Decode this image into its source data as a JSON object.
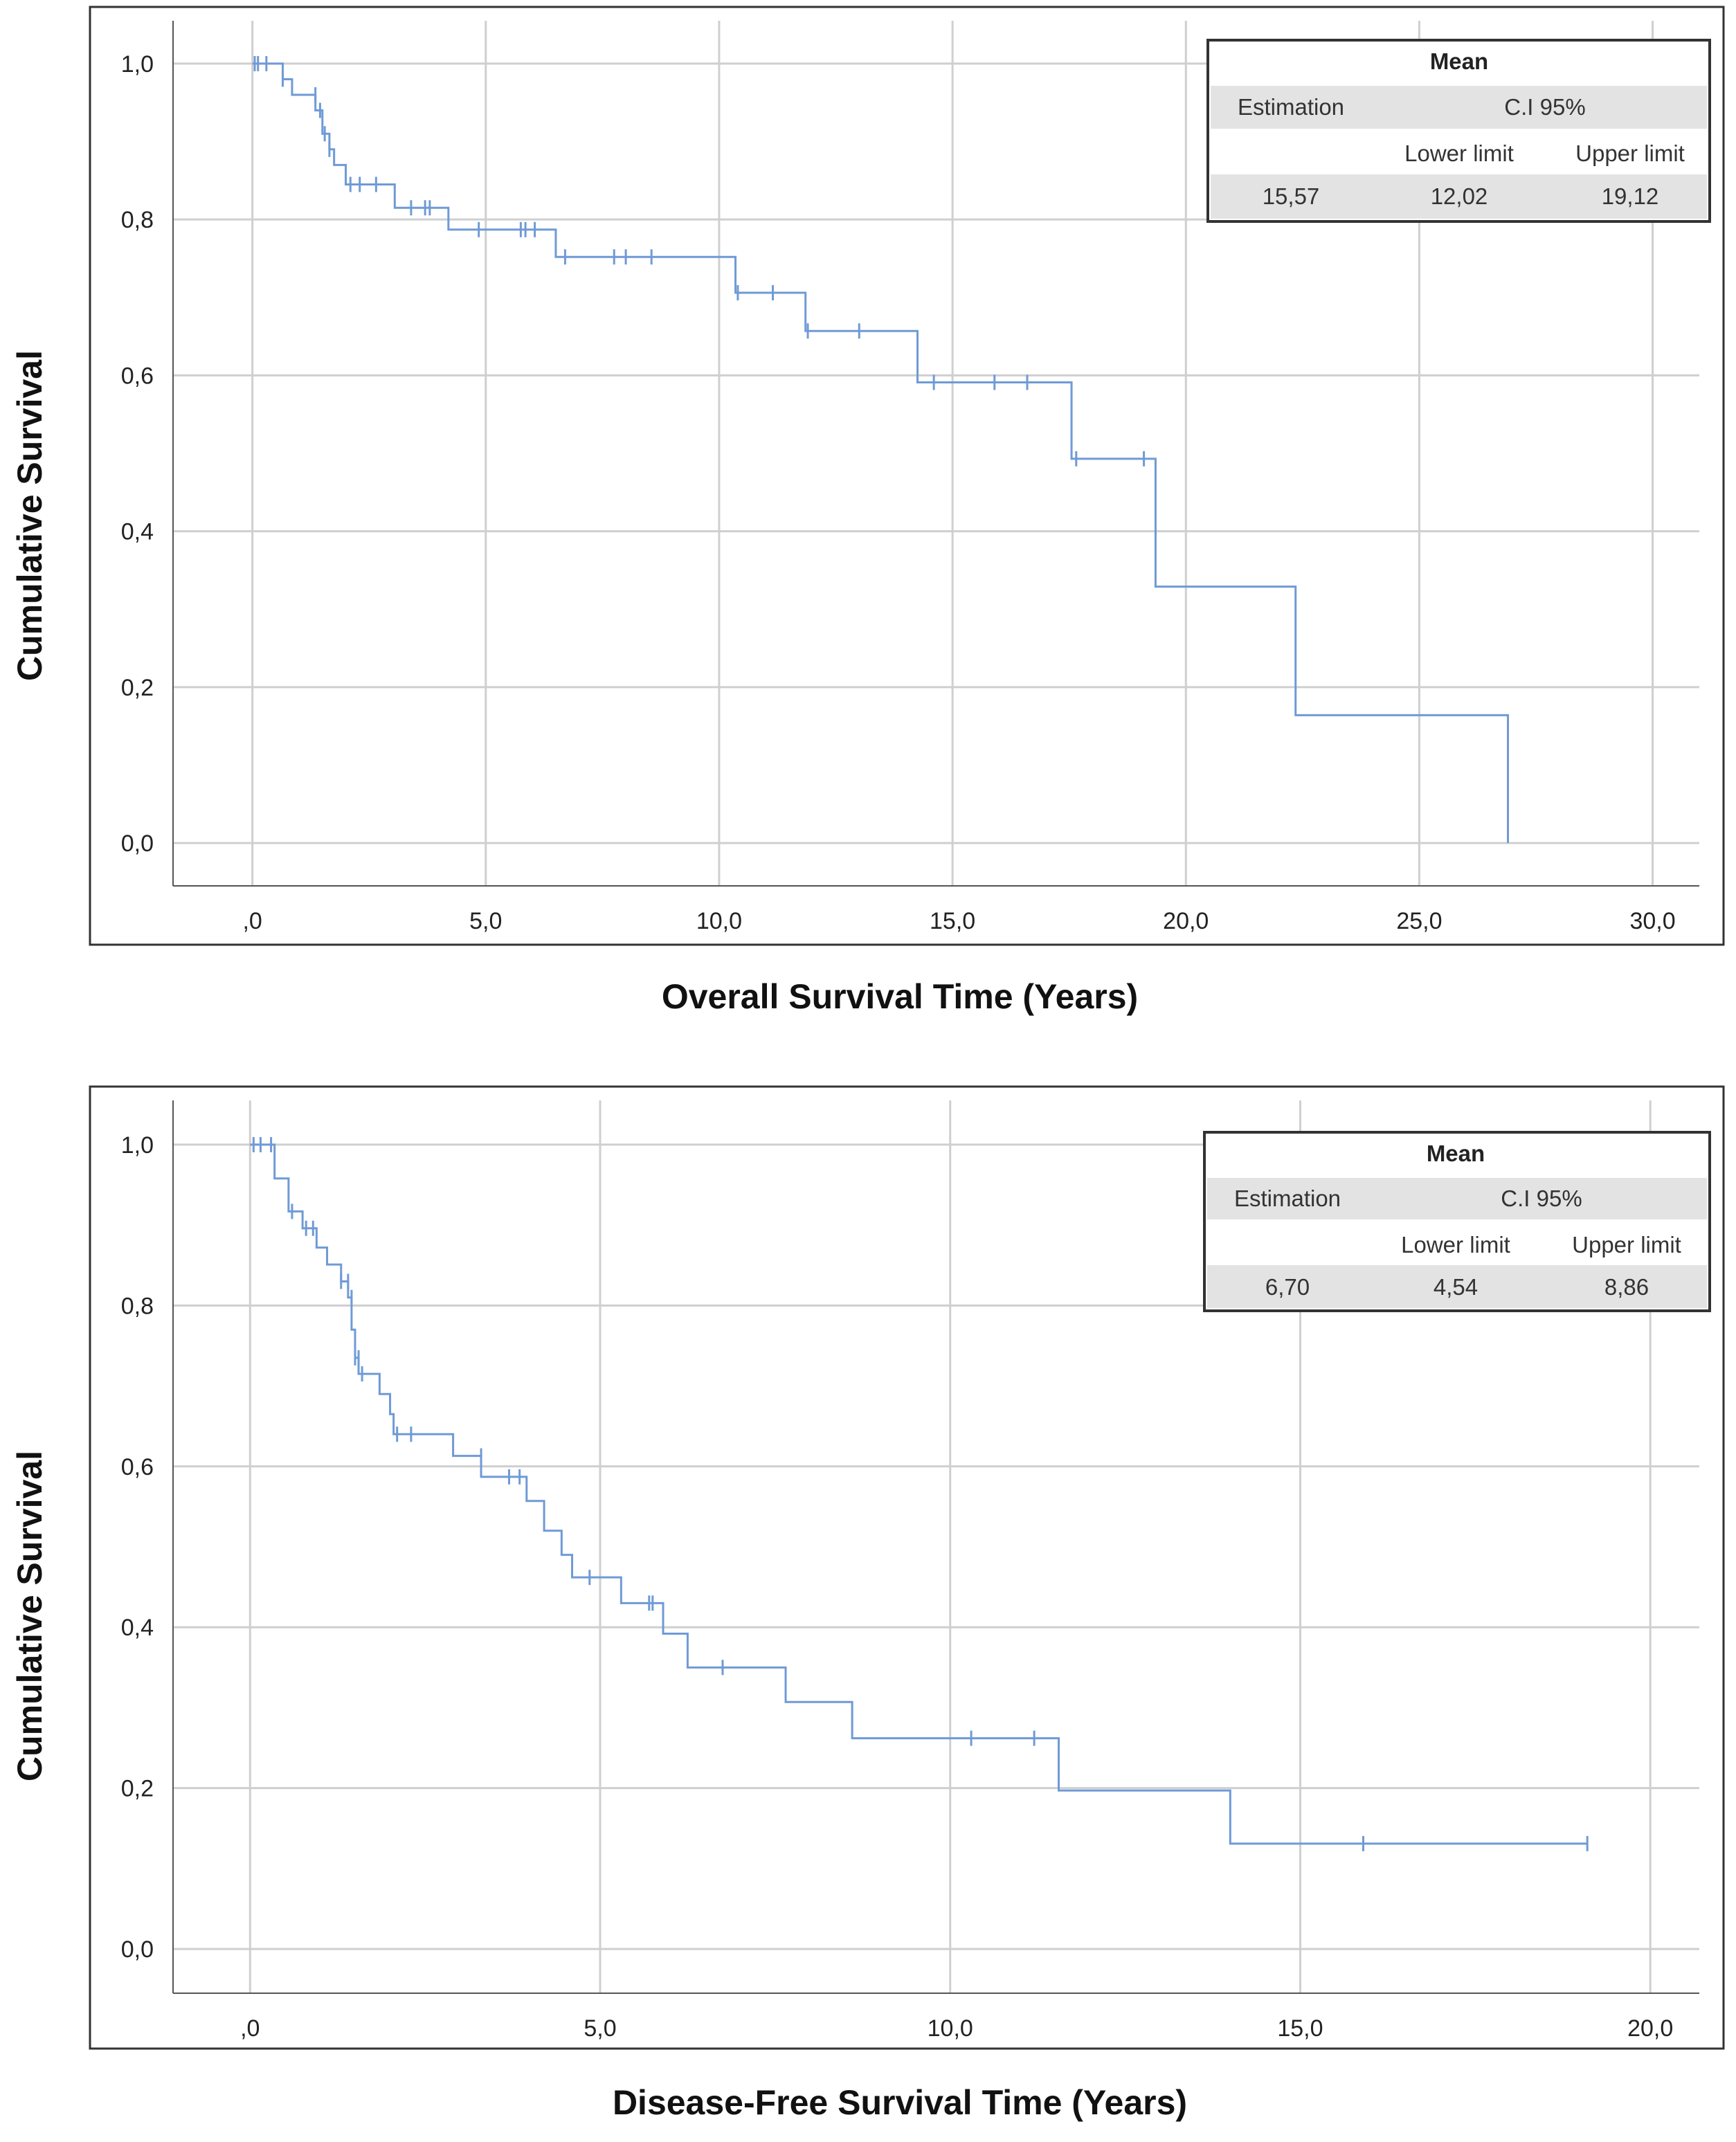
{
  "chart_data": [
    {
      "type": "line",
      "step": true,
      "xlabel": "Overall Survival Time (Years)",
      "ylabel": "Cumulative Survival",
      "xlim": [
        -1.7,
        31.0
      ],
      "ylim": [
        -0.055,
        1.055
      ],
      "x_ticks": [
        0,
        5,
        10,
        15,
        20,
        25,
        30
      ],
      "x_tick_labels": [
        ",0",
        "5,0",
        "10,0",
        "15,0",
        "20,0",
        "25,0",
        "30,0"
      ],
      "y_ticks": [
        0,
        0.2,
        0.4,
        0.6,
        0.8,
        1.0
      ],
      "y_tick_labels": [
        "0,0",
        "0,2",
        "0,4",
        "0,6",
        "0,8",
        "1,0"
      ],
      "grid": true,
      "color": "#6f9ad6",
      "steps": [
        [
          0,
          1.0
        ],
        [
          0.65,
          0.98
        ],
        [
          0.85,
          0.96
        ],
        [
          1.35,
          0.94
        ],
        [
          1.5,
          0.91
        ],
        [
          1.65,
          0.89
        ],
        [
          1.75,
          0.87
        ],
        [
          2.0,
          0.845
        ],
        [
          3.05,
          0.815
        ],
        [
          4.2,
          0.787
        ],
        [
          6.5,
          0.752
        ],
        [
          10.35,
          0.706
        ],
        [
          11.85,
          0.657
        ],
        [
          14.25,
          0.591
        ],
        [
          17.55,
          0.493
        ],
        [
          19.35,
          0.329
        ],
        [
          22.35,
          0.164
        ],
        [
          26.9,
          0.0
        ]
      ],
      "censored": [
        [
          0.05,
          1.0
        ],
        [
          0.12,
          1.0
        ],
        [
          0.3,
          1.0
        ],
        [
          0.65,
          0.98
        ],
        [
          1.35,
          0.96
        ],
        [
          1.45,
          0.94
        ],
        [
          1.55,
          0.91
        ],
        [
          1.65,
          0.89
        ],
        [
          2.1,
          0.845
        ],
        [
          2.3,
          0.845
        ],
        [
          2.65,
          0.845
        ],
        [
          3.4,
          0.815
        ],
        [
          3.7,
          0.815
        ],
        [
          3.8,
          0.815
        ],
        [
          4.85,
          0.787
        ],
        [
          5.75,
          0.787
        ],
        [
          5.85,
          0.787
        ],
        [
          6.05,
          0.787
        ],
        [
          6.7,
          0.752
        ],
        [
          7.75,
          0.752
        ],
        [
          8.0,
          0.752
        ],
        [
          8.55,
          0.752
        ],
        [
          10.4,
          0.706
        ],
        [
          11.15,
          0.706
        ],
        [
          11.9,
          0.657
        ],
        [
          13.0,
          0.657
        ],
        [
          14.6,
          0.591
        ],
        [
          15.9,
          0.591
        ],
        [
          16.6,
          0.591
        ],
        [
          17.65,
          0.493
        ],
        [
          19.1,
          0.493
        ]
      ],
      "table": {
        "title": "Mean",
        "col1": "Estimation",
        "ci_header": "C.I 95%",
        "lower_header": "Lower limit",
        "upper_header": "Upper limit",
        "estimate": "15,57",
        "lower": "12,02",
        "upper": "19,12"
      }
    },
    {
      "type": "line",
      "step": true,
      "xlabel": "Disease-Free Survival Time (Years)",
      "ylabel": "Cumulative Survival",
      "xlim": [
        -1.1,
        20.7
      ],
      "ylim": [
        -0.055,
        1.055
      ],
      "x_ticks": [
        0,
        5,
        10,
        15,
        20
      ],
      "x_tick_labels": [
        ",0",
        "5,0",
        "10,0",
        "15,0",
        "20,0"
      ],
      "y_ticks": [
        0,
        0.2,
        0.4,
        0.6,
        0.8,
        1.0
      ],
      "y_tick_labels": [
        "0,0",
        "0,2",
        "0,4",
        "0,6",
        "0,8",
        "1,0"
      ],
      "grid": true,
      "color": "#6f9ad6",
      "steps": [
        [
          0,
          1.0
        ],
        [
          0.35,
          0.958
        ],
        [
          0.55,
          0.917
        ],
        [
          0.75,
          0.896
        ],
        [
          0.95,
          0.872
        ],
        [
          1.1,
          0.851
        ],
        [
          1.3,
          0.83
        ],
        [
          1.4,
          0.81
        ],
        [
          1.45,
          0.77
        ],
        [
          1.5,
          0.735
        ],
        [
          1.55,
          0.715
        ],
        [
          1.85,
          0.69
        ],
        [
          2.0,
          0.665
        ],
        [
          2.05,
          0.64
        ],
        [
          2.9,
          0.613
        ],
        [
          3.3,
          0.587
        ],
        [
          3.95,
          0.557
        ],
        [
          4.2,
          0.52
        ],
        [
          4.45,
          0.49
        ],
        [
          4.6,
          0.462
        ],
        [
          5.3,
          0.43
        ],
        [
          5.9,
          0.392
        ],
        [
          6.25,
          0.35
        ],
        [
          7.65,
          0.307
        ],
        [
          8.6,
          0.262
        ],
        [
          11.55,
          0.197
        ],
        [
          14.0,
          0.131
        ]
      ],
      "censored": [
        [
          0.05,
          1.0
        ],
        [
          0.15,
          1.0
        ],
        [
          0.3,
          1.0
        ],
        [
          0.6,
          0.917
        ],
        [
          0.8,
          0.896
        ],
        [
          0.9,
          0.896
        ],
        [
          1.3,
          0.83
        ],
        [
          1.4,
          0.83
        ],
        [
          1.45,
          0.81
        ],
        [
          1.5,
          0.735
        ],
        [
          1.55,
          0.735
        ],
        [
          1.6,
          0.715
        ],
        [
          2.1,
          0.64
        ],
        [
          2.3,
          0.64
        ],
        [
          3.3,
          0.613
        ],
        [
          3.7,
          0.587
        ],
        [
          3.85,
          0.587
        ],
        [
          4.85,
          0.462
        ],
        [
          5.7,
          0.43
        ],
        [
          5.75,
          0.43
        ],
        [
          6.75,
          0.35
        ],
        [
          10.3,
          0.262
        ],
        [
          11.2,
          0.262
        ],
        [
          15.9,
          0.131
        ],
        [
          19.1,
          0.131
        ]
      ],
      "table": {
        "title": "Mean",
        "col1": "Estimation",
        "ci_header": "C.I 95%",
        "lower_header": "Lower limit",
        "upper_header": "Upper limit",
        "estimate": "6,70",
        "lower": "4,54",
        "upper": "8,86"
      }
    }
  ]
}
